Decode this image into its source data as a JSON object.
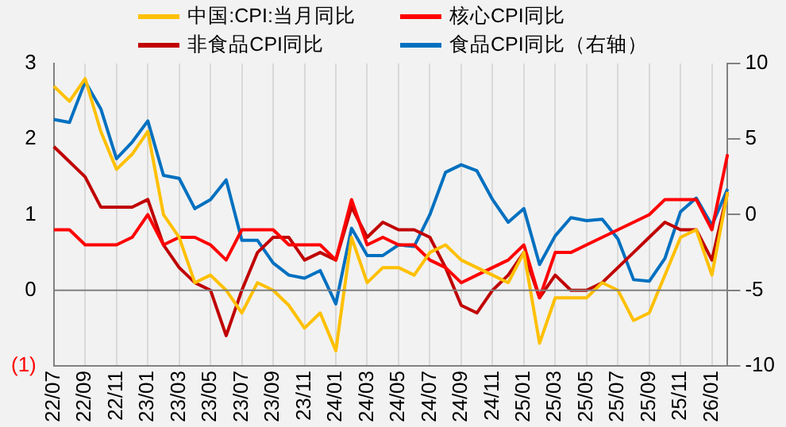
{
  "chart_data": {
    "type": "line",
    "categories": [
      "22/07",
      null,
      "22/09",
      null,
      "22/11",
      null,
      "23/01",
      null,
      "23/03",
      null,
      "23/05",
      null,
      "23/07",
      null,
      "23/09",
      null,
      "23/11",
      null,
      "24/01",
      null,
      "24/03",
      null,
      "24/05",
      null,
      "24/07",
      null,
      "24/09",
      null,
      "24/11",
      null,
      "25/01",
      null,
      "25/03",
      null,
      "25/05",
      null,
      "25/07",
      null,
      "25/09",
      null,
      "25/11",
      null,
      "26/01",
      null
    ],
    "series": [
      {
        "name": "中国:CPI:当月同比",
        "color": "#ffc000",
        "values": [
          2.7,
          2.5,
          2.8,
          2.1,
          1.6,
          1.8,
          2.1,
          1.0,
          0.7,
          0.1,
          0.2,
          0.0,
          -0.3,
          0.1,
          0.0,
          -0.2,
          -0.5,
          -0.3,
          -0.8,
          0.7,
          0.1,
          0.3,
          0.3,
          0.2,
          0.5,
          0.6,
          0.4,
          0.3,
          0.2,
          0.1,
          0.5,
          -0.7,
          -0.1,
          -0.1,
          -0.1,
          0.1,
          0.0,
          -0.4,
          -0.3,
          0.2,
          0.7,
          0.8,
          0.2,
          1.3
        ]
      },
      {
        "name": "核心CPI同比",
        "color": "#ff0000",
        "values": [
          0.8,
          0.8,
          0.6,
          0.6,
          0.6,
          0.7,
          1.0,
          0.6,
          0.7,
          0.7,
          0.6,
          0.4,
          0.8,
          0.8,
          0.8,
          0.6,
          0.6,
          0.6,
          0.4,
          1.2,
          0.6,
          0.7,
          0.6,
          0.6,
          0.4,
          0.3,
          0.1,
          0.2,
          0.3,
          0.4,
          0.6,
          -0.1,
          0.5,
          0.5,
          0.6,
          0.7,
          0.8,
          0.9,
          1.0,
          1.2,
          1.2,
          1.2,
          0.8,
          1.8
        ]
      },
      {
        "name": "非食品CPI同比",
        "color": "#c00000",
        "values": [
          1.9,
          1.7,
          1.5,
          1.1,
          1.1,
          1.1,
          1.2,
          0.6,
          0.3,
          0.1,
          0.0,
          -0.6,
          0.0,
          0.5,
          0.7,
          0.7,
          0.4,
          0.5,
          0.4,
          1.1,
          0.7,
          0.9,
          0.8,
          0.8,
          0.7,
          0.3,
          -0.2,
          -0.3,
          0.0,
          0.2,
          0.5,
          -0.1,
          0.2,
          0.0,
          0.0,
          0.1,
          0.3,
          0.5,
          0.7,
          0.9,
          0.8,
          0.8,
          0.4,
          1.3
        ]
      },
      {
        "name": "食品CPI同比（右轴）",
        "color": "#0070c0",
        "axis": "y2",
        "values": [
          6.3,
          6.1,
          8.8,
          7.0,
          3.7,
          4.8,
          6.2,
          2.6,
          2.4,
          0.4,
          1.0,
          2.3,
          -1.7,
          -1.7,
          -3.2,
          -4.0,
          -4.2,
          -3.7,
          -5.9,
          -0.9,
          -2.7,
          -2.7,
          -2.0,
          -2.1,
          0.0,
          2.8,
          3.3,
          2.9,
          1.0,
          -0.5,
          0.4,
          -3.3,
          -1.4,
          -0.2,
          -0.4,
          -0.3,
          -1.6,
          -4.3,
          -4.4,
          -2.9,
          0.2,
          1.1,
          -0.7,
          1.7
        ]
      }
    ],
    "ylim": [
      -1,
      3
    ],
    "yticks": [
      {
        "value": -1,
        "label": "(1)"
      },
      0,
      1,
      2,
      3
    ],
    "y2lim": [
      -10,
      10
    ],
    "y2ticks": [
      -10,
      -5,
      0,
      5,
      10
    ],
    "grid": "x",
    "legend": "top",
    "marker": "none",
    "line_style": "solid"
  }
}
